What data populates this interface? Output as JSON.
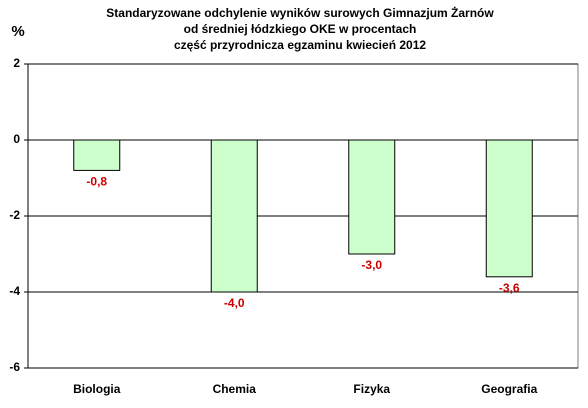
{
  "chart_data": {
    "type": "bar",
    "title": [
      "Standaryzowane odchylenie wyników surowych Gimnazjum Żarnów",
      "od średniej łódzkiego OKE w procentach",
      "część przyrodnicza egzaminu kwiecień 2012"
    ],
    "y_label": "%",
    "categories": [
      "Biologia",
      "Chemia",
      "Fizyka",
      "Geografia"
    ],
    "values": [
      -0.8,
      -4.0,
      -3.0,
      -3.6
    ],
    "value_labels": [
      "-0,8",
      "-4,0",
      "-3,0",
      "-3,6"
    ],
    "color": "#ccffcc",
    "label_color": "#cc0000",
    "ylim": [
      -6,
      2
    ],
    "yticks": [
      -6,
      -4,
      -2,
      0,
      2
    ],
    "grid": true
  }
}
